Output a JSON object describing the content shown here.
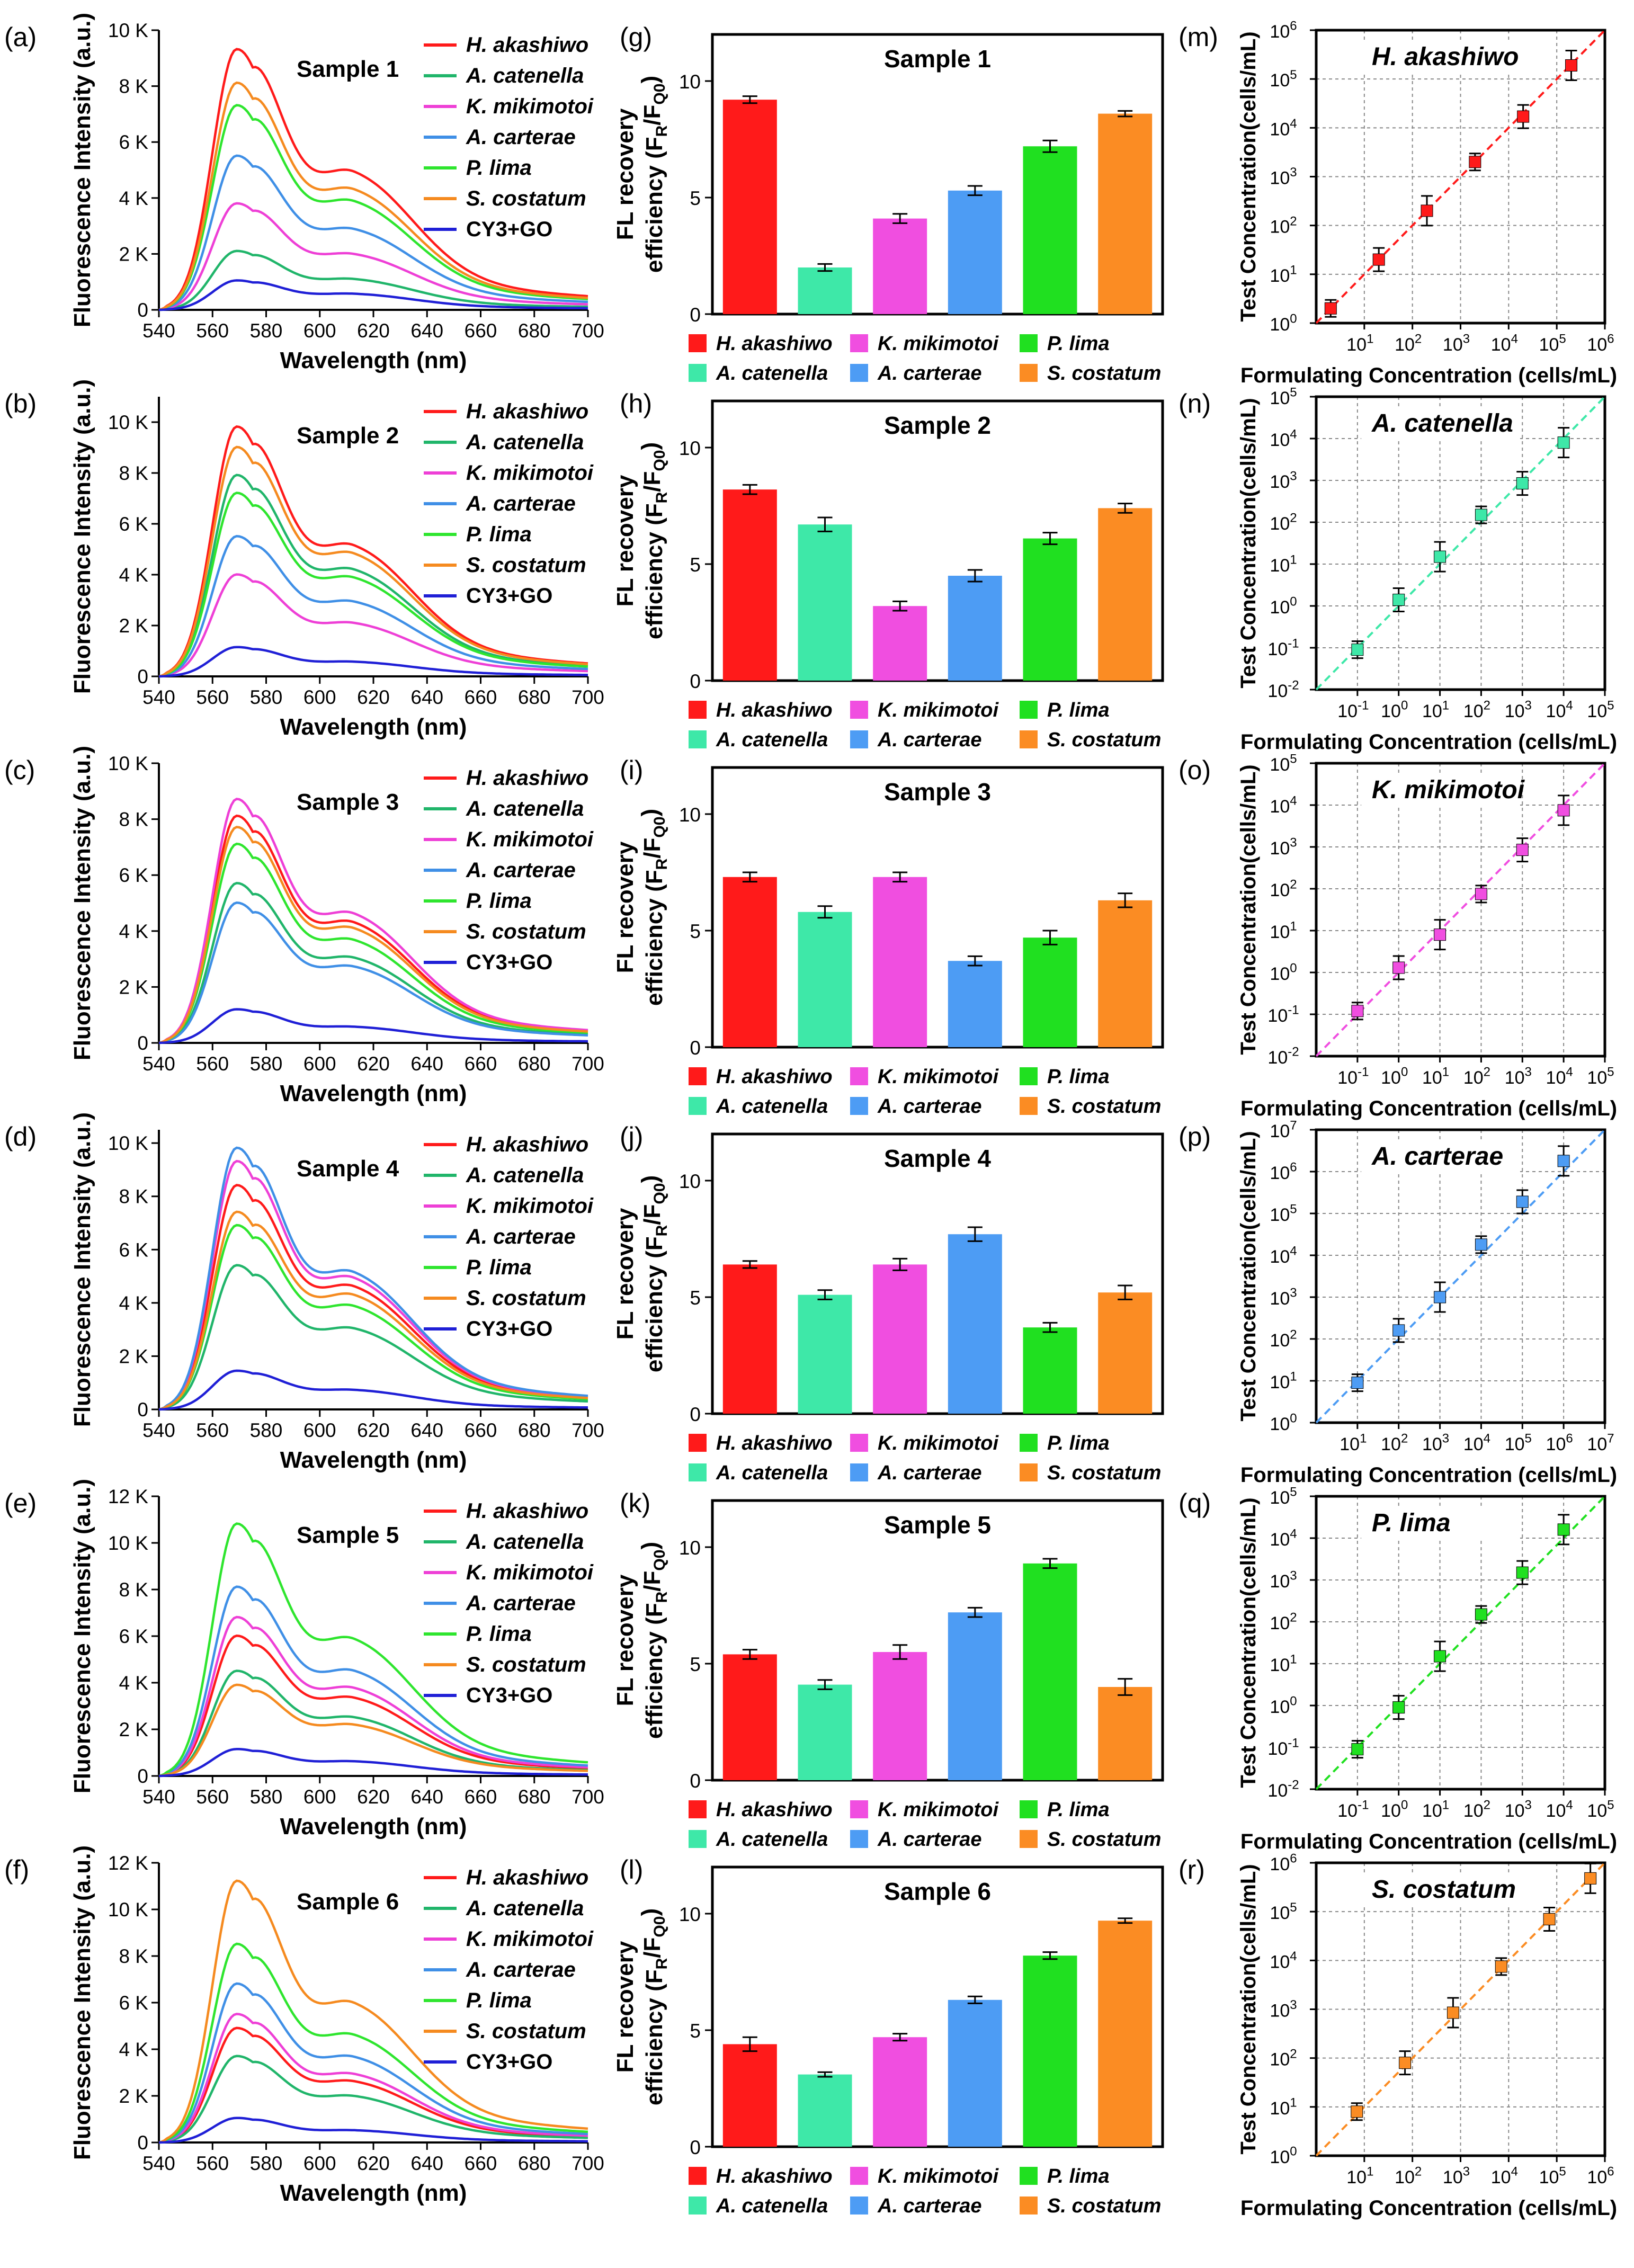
{
  "species": [
    "H. akashiwo",
    "A. catenella",
    "K. mikimotoi",
    "A. carterae",
    "P. lima",
    "S. costatum",
    "CY3+GO"
  ],
  "colors": {
    "H. akashiwo": "#ff1a1a",
    "A. catenella": "#20b56a",
    "K. mikimotoi": "#ee3fd6",
    "A. carterae": "#3f8fe6",
    "P. lima": "#2ee52e",
    "S. costatum": "#f58a1f",
    "CY3+GO": "#1f1fd6"
  },
  "bar_colors": {
    "H. akashiwo": "#ff1a1a",
    "A. catenella": "#3ee8a8",
    "K. mikimotoi": "#f04ee0",
    "A. carterae": "#4d9cf4",
    "P. lima": "#20e020",
    "S. costatum": "#fb8c23"
  },
  "spectra_common": {
    "xlabel": "Wavelength (nm)",
    "ylabel": "Fluorescence Intensity (a.u.)",
    "x_ticks": [
      "540",
      "560",
      "580",
      "600",
      "620",
      "640",
      "660",
      "680",
      "700"
    ]
  },
  "bars_common": {
    "ylabel_line1": "FL recovery",
    "ylabel_line2": "efficiency (F",
    "ylabel_sub1": "R",
    "ylabel_mid": "/F",
    "ylabel_sub2": "Q0",
    "ylabel_end": ")",
    "y_ticks": [
      "0",
      "5",
      "10"
    ]
  },
  "calib_common": {
    "xlabel": "Formulating Concentration (cells/mL)",
    "ylabel": "Test Concentration(cells/mL)",
    "base": "10"
  },
  "chart_data": [
    {
      "id": "a",
      "panel_label": "(a)",
      "type": "line",
      "title": "Sample  1",
      "ylim": [
        0,
        10000
      ],
      "y_ticks": [
        "0",
        "2 K",
        "4 K",
        "6 K",
        "8 K",
        "10 K"
      ],
      "y_tick_values": [
        0,
        2000,
        4000,
        6000,
        8000,
        10000
      ],
      "series": [
        {
          "name": "H. akashiwo",
          "peak": 9300,
          "shoulder": 4700
        },
        {
          "name": "A. catenella",
          "peak": 2100,
          "shoulder": 1050
        },
        {
          "name": "K. mikimotoi",
          "peak": 3800,
          "shoulder": 1900
        },
        {
          "name": "A. carterae",
          "peak": 5500,
          "shoulder": 2750
        },
        {
          "name": "P. lima",
          "peak": 7300,
          "shoulder": 3700
        },
        {
          "name": "S. costatum",
          "peak": 8100,
          "shoulder": 4100
        },
        {
          "name": "CY3+GO",
          "peak": 1050,
          "shoulder": 550
        }
      ]
    },
    {
      "id": "b",
      "panel_label": "(b)",
      "type": "line",
      "title": "Sample  2",
      "ylim": [
        0,
        11000
      ],
      "y_ticks": [
        "0",
        "2 K",
        "4 K",
        "6 K",
        "8 K",
        "10 K"
      ],
      "y_tick_values": [
        0,
        2000,
        4000,
        6000,
        8000,
        10000
      ],
      "series": [
        {
          "name": "H. akashiwo",
          "peak": 9800,
          "shoulder": 4900
        },
        {
          "name": "A. catenella",
          "peak": 7900,
          "shoulder": 4000
        },
        {
          "name": "K. mikimotoi",
          "peak": 4000,
          "shoulder": 2000
        },
        {
          "name": "A. carterae",
          "peak": 5500,
          "shoulder": 2800
        },
        {
          "name": "P. lima",
          "peak": 7200,
          "shoulder": 3700
        },
        {
          "name": "S. costatum",
          "peak": 9000,
          "shoulder": 4600
        },
        {
          "name": "CY3+GO",
          "peak": 1150,
          "shoulder": 550
        }
      ]
    },
    {
      "id": "c",
      "panel_label": "(c)",
      "type": "line",
      "title": "Sample  3",
      "ylim": [
        0,
        10000
      ],
      "y_ticks": [
        "0",
        "2 K",
        "4 K",
        "6 K",
        "8 K",
        "10 K"
      ],
      "y_tick_values": [
        0,
        2000,
        4000,
        6000,
        8000,
        10000
      ],
      "series": [
        {
          "name": "H. akashiwo",
          "peak": 8100,
          "shoulder": 4100
        },
        {
          "name": "A. catenella",
          "peak": 5700,
          "shoulder": 2900
        },
        {
          "name": "K. mikimotoi",
          "peak": 8700,
          "shoulder": 4400
        },
        {
          "name": "A. carterae",
          "peak": 5000,
          "shoulder": 2600
        },
        {
          "name": "P. lima",
          "peak": 7100,
          "shoulder": 3500
        },
        {
          "name": "S. costatum",
          "peak": 7700,
          "shoulder": 3900
        },
        {
          "name": "CY3+GO",
          "peak": 1200,
          "shoulder": 550
        }
      ]
    },
    {
      "id": "d",
      "panel_label": "(d)",
      "type": "line",
      "title": "Sample  4",
      "ylim": [
        0,
        10500
      ],
      "y_ticks": [
        "0",
        "2 K",
        "4 K",
        "6 K",
        "8 K",
        "10 K"
      ],
      "y_tick_values": [
        0,
        2000,
        4000,
        6000,
        8000,
        10000
      ],
      "series": [
        {
          "name": "H. akashiwo",
          "peak": 8400,
          "shoulder": 4400
        },
        {
          "name": "A. catenella",
          "peak": 5400,
          "shoulder": 2900
        },
        {
          "name": "K. mikimotoi",
          "peak": 9300,
          "shoulder": 4700
        },
        {
          "name": "A. carterae",
          "peak": 9800,
          "shoulder": 4900
        },
        {
          "name": "P. lima",
          "peak": 6900,
          "shoulder": 3700
        },
        {
          "name": "S. costatum",
          "peak": 7400,
          "shoulder": 4100
        },
        {
          "name": "CY3+GO",
          "peak": 1450,
          "shoulder": 700
        }
      ]
    },
    {
      "id": "e",
      "panel_label": "(e)",
      "type": "line",
      "title": "Sample  5",
      "ylim": [
        0,
        12000
      ],
      "y_ticks": [
        "0",
        "2 K",
        "4 K",
        "6 K",
        "8 K",
        "10 K",
        "12 K"
      ],
      "y_tick_values": [
        0,
        2000,
        4000,
        6000,
        8000,
        10000,
        12000
      ],
      "series": [
        {
          "name": "H. akashiwo",
          "peak": 6000,
          "shoulder": 3200
        },
        {
          "name": "A. catenella",
          "peak": 4500,
          "shoulder": 2400
        },
        {
          "name": "K. mikimotoi",
          "peak": 6800,
          "shoulder": 3600
        },
        {
          "name": "A. carterae",
          "peak": 8100,
          "shoulder": 4300
        },
        {
          "name": "P. lima",
          "peak": 10800,
          "shoulder": 5600
        },
        {
          "name": "S. costatum",
          "peak": 3900,
          "shoulder": 2100
        },
        {
          "name": "CY3+GO",
          "peak": 1150,
          "shoulder": 600
        }
      ]
    },
    {
      "id": "f",
      "panel_label": "(f)",
      "type": "line",
      "title": "Sample  6",
      "ylim": [
        0,
        12000
      ],
      "y_ticks": [
        "0",
        "2 K",
        "4 K",
        "6 K",
        "8 K",
        "10 K",
        "12 K"
      ],
      "y_tick_values": [
        0,
        2000,
        4000,
        6000,
        8000,
        10000,
        12000
      ],
      "series": [
        {
          "name": "H. akashiwo",
          "peak": 4900,
          "shoulder": 2500
        },
        {
          "name": "A. catenella",
          "peak": 3700,
          "shoulder": 1900
        },
        {
          "name": "K. mikimotoi",
          "peak": 5500,
          "shoulder": 2800
        },
        {
          "name": "A. carterae",
          "peak": 6800,
          "shoulder": 3500
        },
        {
          "name": "P. lima",
          "peak": 8500,
          "shoulder": 4400
        },
        {
          "name": "S. costatum",
          "peak": 11200,
          "shoulder": 5700
        },
        {
          "name": "CY3+GO",
          "peak": 1050,
          "shoulder": 500
        }
      ]
    },
    {
      "id": "g",
      "panel_label": "(g)",
      "type": "bar",
      "title": "Sample 1",
      "ylim": [
        0,
        12
      ],
      "categories": [
        "H. akashiwo",
        "A. catenella",
        "K. mikimotoi",
        "A. carterae",
        "P. lima",
        "S. costatum"
      ],
      "values": [
        9.2,
        2.0,
        4.1,
        5.3,
        7.2,
        8.6
      ],
      "errors": [
        0.15,
        0.15,
        0.2,
        0.2,
        0.25,
        0.12
      ]
    },
    {
      "id": "h",
      "panel_label": "(h)",
      "type": "bar",
      "title": "Sample 2",
      "ylim": [
        0,
        12
      ],
      "categories": [
        "H. akashiwo",
        "A. catenella",
        "K. mikimotoi",
        "A. carterae",
        "P. lima",
        "S. costatum"
      ],
      "values": [
        8.2,
        6.7,
        3.2,
        4.5,
        6.1,
        7.4
      ],
      "errors": [
        0.2,
        0.3,
        0.2,
        0.25,
        0.25,
        0.2
      ]
    },
    {
      "id": "i",
      "panel_label": "(i)",
      "type": "bar",
      "title": "Sample 3",
      "ylim": [
        0,
        12
      ],
      "categories": [
        "H. akashiwo",
        "A. catenella",
        "K. mikimotoi",
        "A. carterae",
        "P. lima",
        "S. costatum"
      ],
      "values": [
        7.3,
        5.8,
        7.3,
        3.7,
        4.7,
        6.3
      ],
      "errors": [
        0.2,
        0.25,
        0.2,
        0.2,
        0.3,
        0.3
      ]
    },
    {
      "id": "j",
      "panel_label": "(j)",
      "type": "bar",
      "title": "Sample 4",
      "ylim": [
        0,
        12
      ],
      "categories": [
        "H. akashiwo",
        "A. catenella",
        "K. mikimotoi",
        "A. carterae",
        "P. lima",
        "S. costatum"
      ],
      "values": [
        6.4,
        5.1,
        6.4,
        7.7,
        3.7,
        5.2
      ],
      "errors": [
        0.15,
        0.2,
        0.25,
        0.3,
        0.2,
        0.3
      ]
    },
    {
      "id": "k",
      "panel_label": "(k)",
      "type": "bar",
      "title": "Sample 5",
      "ylim": [
        0,
        12
      ],
      "categories": [
        "H. akashiwo",
        "A. catenella",
        "K. mikimotoi",
        "A. carterae",
        "P. lima",
        "S. costatum"
      ],
      "values": [
        5.4,
        4.1,
        5.5,
        7.2,
        9.3,
        4.0
      ],
      "errors": [
        0.2,
        0.2,
        0.3,
        0.2,
        0.2,
        0.35
      ]
    },
    {
      "id": "l",
      "panel_label": "(l)",
      "type": "bar",
      "title": "Sample 6",
      "ylim": [
        0,
        12
      ],
      "categories": [
        "H. akashiwo",
        "A. catenella",
        "K. mikimotoi",
        "A. carterae",
        "P. lima",
        "S. costatum"
      ],
      "values": [
        4.4,
        3.1,
        4.7,
        6.3,
        8.2,
        9.7
      ],
      "errors": [
        0.3,
        0.1,
        0.15,
        0.15,
        0.15,
        0.1
      ]
    },
    {
      "id": "m",
      "panel_label": "(m)",
      "type": "scatter",
      "title": "H. akashiwo",
      "color": "#ff1a1a",
      "x_range_exp": [
        0,
        6
      ],
      "y_range_exp": [
        0,
        6
      ],
      "x_tick_exps": [
        1,
        2,
        3,
        4,
        5,
        6
      ],
      "y_tick_exps": [
        0,
        1,
        2,
        3,
        4,
        5,
        6
      ],
      "x": [
        2,
        20,
        200,
        2000,
        20000,
        200000
      ],
      "y": [
        2,
        20,
        200,
        2000,
        17000,
        190000
      ]
    },
    {
      "id": "n",
      "panel_label": "(n)",
      "type": "scatter",
      "title": "A. catenella",
      "color": "#3ee8a8",
      "x_range_exp": [
        -2,
        5
      ],
      "y_range_exp": [
        -2,
        5
      ],
      "x_tick_exps": [
        -1,
        0,
        1,
        2,
        3,
        4,
        5
      ],
      "y_tick_exps": [
        -2,
        -1,
        0,
        1,
        2,
        3,
        4,
        5
      ],
      "x": [
        0.1,
        1,
        10,
        100,
        1000,
        10000
      ],
      "y": [
        0.09,
        1.4,
        15,
        150,
        850,
        8000
      ]
    },
    {
      "id": "o",
      "panel_label": "(o)",
      "type": "scatter",
      "title": "K. mikimotoi",
      "color": "#f04ee0",
      "x_range_exp": [
        -2,
        5
      ],
      "y_range_exp": [
        -2,
        5
      ],
      "x_tick_exps": [
        -1,
        0,
        1,
        2,
        3,
        4,
        5
      ],
      "y_tick_exps": [
        -2,
        -1,
        0,
        1,
        2,
        3,
        4,
        5
      ],
      "x": [
        0.1,
        1,
        10,
        100,
        1000,
        10000
      ],
      "y": [
        0.12,
        1.3,
        8,
        75,
        850,
        7500
      ]
    },
    {
      "id": "p",
      "panel_label": "(p)",
      "type": "scatter",
      "title": "A. carterae",
      "color": "#4d9cf4",
      "x_range_exp": [
        0,
        7
      ],
      "y_range_exp": [
        0,
        7
      ],
      "x_tick_exps": [
        1,
        2,
        3,
        4,
        5,
        6,
        7
      ],
      "y_tick_exps": [
        0,
        1,
        2,
        3,
        4,
        5,
        6,
        7
      ],
      "x": [
        10,
        100,
        1000,
        10000,
        100000,
        1000000
      ],
      "y": [
        9,
        160,
        1000,
        18000,
        190000,
        1800000
      ]
    },
    {
      "id": "q",
      "panel_label": "(q)",
      "type": "scatter",
      "title": "P. lima",
      "color": "#20e020",
      "x_range_exp": [
        -2,
        5
      ],
      "y_range_exp": [
        -2,
        5
      ],
      "x_tick_exps": [
        -1,
        0,
        1,
        2,
        3,
        4,
        5
      ],
      "y_tick_exps": [
        -2,
        -1,
        0,
        1,
        2,
        3,
        4,
        5
      ],
      "x": [
        0.1,
        1,
        10,
        100,
        1000,
        10000
      ],
      "y": [
        0.09,
        0.9,
        15,
        150,
        1500,
        16000
      ]
    },
    {
      "id": "r",
      "panel_label": "(r)",
      "type": "scatter",
      "title": "S. costatum",
      "color": "#fb8c23",
      "x_range_exp": [
        0,
        6
      ],
      "y_range_exp": [
        0,
        6
      ],
      "x_tick_exps": [
        1,
        2,
        3,
        4,
        5,
        6
      ],
      "y_tick_exps": [
        0,
        1,
        2,
        3,
        4,
        5,
        6
      ],
      "x": [
        7,
        70,
        700,
        7000,
        70000,
        500000
      ],
      "y": [
        8,
        80,
        850,
        7500,
        70000,
        480000
      ]
    }
  ]
}
